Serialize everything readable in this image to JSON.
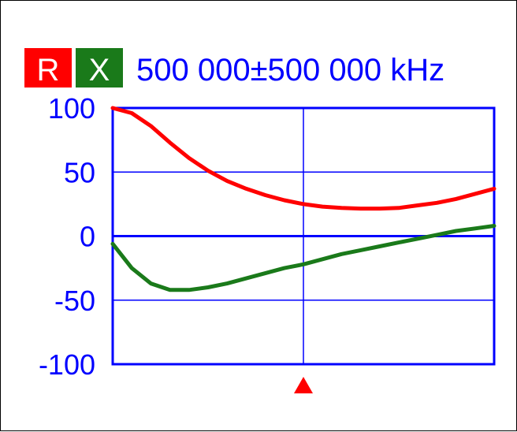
{
  "header": {
    "r_label": "R",
    "x_label": "X",
    "frequency_text": "500 000±500 000 kHz"
  },
  "colors": {
    "r": "#ff0000",
    "x": "#1a7a1a",
    "axis": "#0000ff",
    "text": "#0000ff",
    "badge_text": "#ffffff"
  },
  "chart_data": {
    "type": "line",
    "title": "",
    "xlabel": "",
    "ylabel": "",
    "xlim": [
      0,
      1000000
    ],
    "ylim": [
      -100,
      100
    ],
    "y_ticks": [
      100,
      50,
      0,
      -50,
      -100
    ],
    "grid": true,
    "legend": "top-left",
    "marker_x": 500000,
    "series": [
      {
        "name": "R",
        "color": "#ff0000",
        "x": [
          0,
          50000,
          100000,
          150000,
          200000,
          250000,
          300000,
          350000,
          400000,
          450000,
          500000,
          550000,
          600000,
          650000,
          700000,
          750000,
          800000,
          850000,
          900000,
          950000,
          1000000
        ],
        "y": [
          100,
          96,
          86,
          73,
          61,
          51,
          43,
          37,
          32,
          28,
          25,
          23,
          22,
          21.5,
          21.5,
          22,
          24,
          26,
          29,
          33,
          37
        ]
      },
      {
        "name": "X",
        "color": "#1a7a1a",
        "x": [
          0,
          50000,
          100000,
          150000,
          200000,
          250000,
          300000,
          350000,
          400000,
          450000,
          500000,
          550000,
          600000,
          650000,
          700000,
          750000,
          800000,
          850000,
          900000,
          950000,
          1000000
        ],
        "y": [
          -6,
          -25,
          -37,
          -42,
          -42,
          -40,
          -37,
          -33,
          -29,
          -25,
          -22,
          -18,
          -14,
          -11,
          -8,
          -5,
          -2,
          1,
          4,
          6,
          8
        ]
      }
    ]
  }
}
